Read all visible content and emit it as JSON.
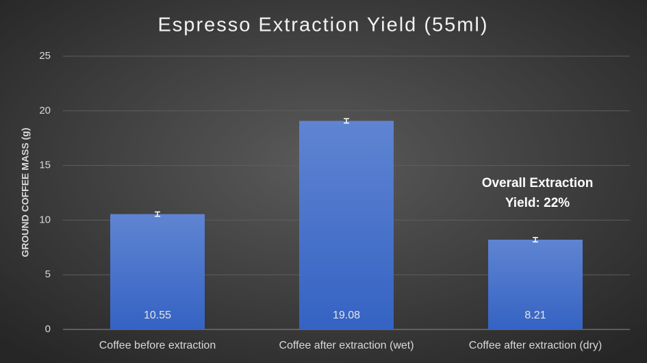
{
  "chart_data": {
    "type": "bar",
    "title": "Espresso Extraction Yield (55ml)",
    "y_label": "GROUND COFFEE MASS (g)",
    "categories": [
      "Coffee before extraction",
      "Coffee after extraction (wet)",
      "Coffee after extraction (dry)"
    ],
    "values": [
      10.55,
      19.08,
      8.21
    ],
    "errors": [
      0.2,
      0.2,
      0.2
    ],
    "color": "#4472c4",
    "ylim": [
      0,
      25
    ],
    "yticks": [
      0,
      5,
      10,
      15,
      20,
      25
    ],
    "grid": true,
    "annotation": [
      "Overall Extraction",
      "Yield: 22%"
    ]
  }
}
